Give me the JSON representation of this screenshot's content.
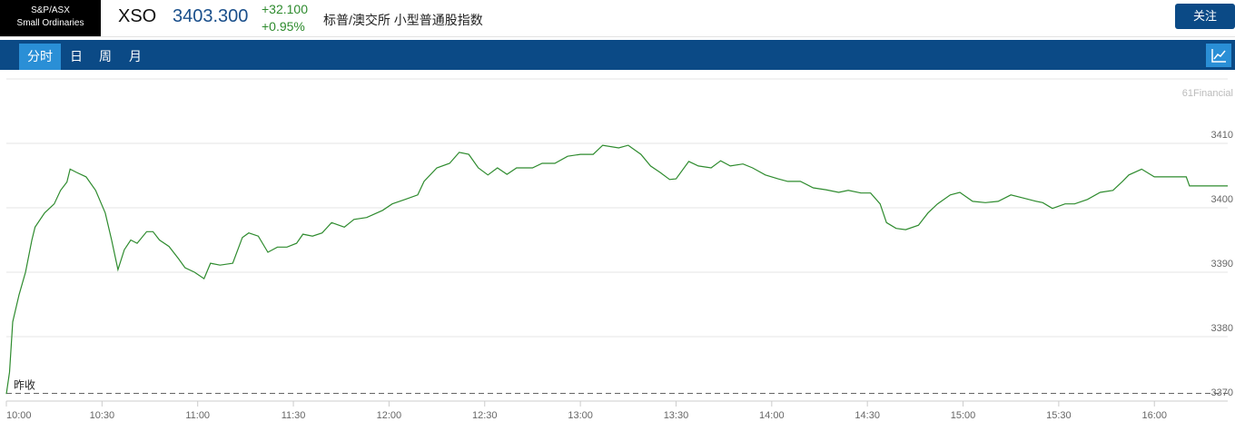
{
  "header": {
    "logo_line1": "S&P/ASX",
    "logo_line2": "Small Ordinaries",
    "code": "XSO",
    "price": "3403.300",
    "change": "+32.100",
    "change_pct": "+0.95%",
    "name": "标普/澳交所 小型普通股指数",
    "follow_button": "关注"
  },
  "tabs": [
    "分时",
    "日",
    "周",
    "月"
  ],
  "chart_data": {
    "type": "line",
    "watermark": "61Financial",
    "color": "#2e8b2e",
    "prev_close": 3371.2,
    "prev_close_label": "昨收",
    "x": [
      0,
      1,
      2,
      4,
      6,
      8,
      9,
      12,
      15,
      17,
      19,
      20,
      22,
      25,
      28,
      31,
      33,
      35,
      37,
      39,
      41,
      44,
      46,
      48,
      51,
      54,
      56,
      59,
      62,
      64,
      67,
      71,
      74,
      76,
      79,
      82,
      85,
      88,
      91,
      93,
      96,
      99,
      102,
      106,
      109,
      113,
      118,
      121,
      125,
      129,
      131,
      135,
      139,
      142,
      145,
      148,
      151,
      154,
      157,
      160,
      165,
      168,
      172,
      176,
      180,
      184,
      187,
      192,
      195,
      199,
      202,
      205,
      208,
      210,
      214,
      217,
      221,
      224,
      227,
      231,
      234,
      238,
      242,
      245,
      249,
      253,
      257,
      261,
      264,
      268,
      271,
      274,
      276,
      279,
      282,
      286,
      289,
      292,
      296,
      299,
      303,
      307,
      311,
      315,
      319,
      323,
      325,
      328,
      332,
      335,
      339,
      343,
      347,
      350,
      352,
      356,
      360,
      364,
      370,
      371,
      383
    ],
    "values": [
      3371.1,
      3374.5,
      3382.3,
      3386.5,
      3390,
      3395,
      3397,
      3399.2,
      3400.6,
      3402.7,
      3404,
      3406,
      3405.5,
      3404.8,
      3402.7,
      3399.2,
      3395,
      3390.4,
      3393.5,
      3395,
      3394.5,
      3396.3,
      3396.3,
      3395,
      3394,
      3392.1,
      3390.7,
      3390,
      3389,
      3391.4,
      3391.1,
      3391.4,
      3395.4,
      3396.1,
      3395.6,
      3393.1,
      3393.9,
      3393.9,
      3394.5,
      3395.9,
      3395.6,
      3396.1,
      3397.7,
      3397,
      3398.2,
      3398.5,
      3399.6,
      3400.6,
      3401.3,
      3402,
      3404.1,
      3406.2,
      3406.9,
      3408.6,
      3408.3,
      3406.2,
      3405.1,
      3406.2,
      3405.2,
      3406.2,
      3406.2,
      3406.9,
      3406.9,
      3408,
      3408.3,
      3408.3,
      3409.7,
      3409.3,
      3409.7,
      3408.3,
      3406.5,
      3405.5,
      3404.4,
      3404.5,
      3407.2,
      3406.5,
      3406.2,
      3407.3,
      3406.5,
      3406.8,
      3406.2,
      3405.1,
      3404.5,
      3404.1,
      3404.1,
      3403.1,
      3402.8,
      3402.4,
      3402.7,
      3402.3,
      3402.3,
      3400.6,
      3397.7,
      3396.8,
      3396.6,
      3397.3,
      3399.2,
      3400.6,
      3402,
      3402.4,
      3401,
      3400.8,
      3401,
      3402,
      3401.5,
      3401,
      3400.8,
      3399.9,
      3400.6,
      3400.6,
      3401.3,
      3402.4,
      3402.7,
      3404.1,
      3405.1,
      3406,
      3404.8,
      3404.8,
      3404.8,
      3403.4,
      3403.4
    ],
    "xlim": [
      0,
      383
    ],
    "xticks": [
      {
        "value": 0,
        "label": "10:00"
      },
      {
        "value": 30,
        "label": "10:30"
      },
      {
        "value": 60,
        "label": "11:00"
      },
      {
        "value": 90,
        "label": "11:30"
      },
      {
        "value": 120,
        "label": "12:00"
      },
      {
        "value": 150,
        "label": "12:30"
      },
      {
        "value": 180,
        "label": "13:00"
      },
      {
        "value": 210,
        "label": "13:30"
      },
      {
        "value": 240,
        "label": "14:00"
      },
      {
        "value": 270,
        "label": "14:30"
      },
      {
        "value": 300,
        "label": "15:00"
      },
      {
        "value": 330,
        "label": "15:30"
      },
      {
        "value": 360,
        "label": "16:00"
      }
    ],
    "ylim": [
      3370,
      3420
    ],
    "yticks": [
      3370,
      3380,
      3390,
      3400,
      3410
    ],
    "grid": true
  }
}
